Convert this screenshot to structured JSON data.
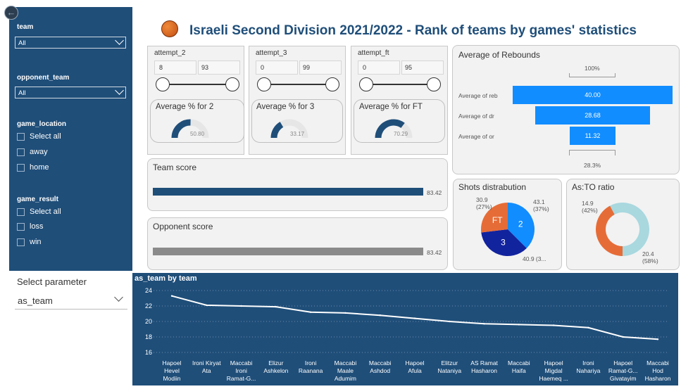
{
  "page": {
    "title": "Israeli Second Division 2021/2022 - Rank of teams by games' statistics"
  },
  "filters": {
    "team": {
      "label": "team",
      "value": "All"
    },
    "opponent_team": {
      "label": "opponent_team",
      "value": "All"
    },
    "game_location": {
      "label": "game_location",
      "options": [
        "Select all",
        "away",
        "home"
      ]
    },
    "game_result": {
      "label": "game_result",
      "options": [
        "Select all",
        "loss",
        "win"
      ]
    }
  },
  "select_parameter": {
    "label": "Select parameter",
    "value": "as_team"
  },
  "sliders": [
    {
      "title": "attempt_2",
      "min": "8",
      "max": "93"
    },
    {
      "title": "attempt_3",
      "min": "0",
      "max": "99"
    },
    {
      "title": "attempt_ft",
      "min": "0",
      "max": "95"
    }
  ],
  "gauges": [
    {
      "title": "Average % for 2",
      "value": "50.80",
      "fraction": 0.508
    },
    {
      "title": "Average % for 3",
      "value": "33.17",
      "fraction": 0.3317
    },
    {
      "title": "Average % for FT",
      "value": "70.29",
      "fraction": 0.7029
    }
  ],
  "team_score": {
    "title": "Team score",
    "value": "83.42"
  },
  "opponent_score": {
    "title": "Opponent score",
    "value": "83.42"
  },
  "rebounds": {
    "title": "Average of Rebounds",
    "top_pct": "100%",
    "bottom_pct": "28.3%",
    "rows": [
      {
        "label": "Average of reb",
        "value": "40.00",
        "num": 40.0
      },
      {
        "label": "Average of dr",
        "value": "28.68",
        "num": 28.68
      },
      {
        "label": "Average of or",
        "value": "11.32",
        "num": 11.32
      }
    ]
  },
  "shots": {
    "title": "Shots distrabution",
    "slices": [
      {
        "name": "2",
        "value": 43.1,
        "label": "43.1",
        "pct": "(37%)",
        "color": "#118dff"
      },
      {
        "name": "3",
        "value": 40.9,
        "label": "40.9 (3...",
        "pct": "",
        "color": "#12239e"
      },
      {
        "name": "FT",
        "value": 30.9,
        "label": "30.9",
        "pct": "(27%)",
        "color": "#e66c37"
      }
    ]
  },
  "as_to": {
    "title": "As:TO ratio",
    "slices": [
      {
        "value": 14.9,
        "label": "14.9",
        "pct": "(42%)",
        "color": "#e66c37"
      },
      {
        "value": 20.4,
        "label": "20.4",
        "pct": "(58%)",
        "color": "#a9d8df"
      }
    ]
  },
  "chart_data": {
    "type": "line",
    "title": "as_team by team",
    "categories": [
      "Hapoel Hevel Modiin",
      "Ironi Kiryat Ata",
      "Maccabi Ironi Ramat-G...",
      "Elizur Ashkelon",
      "Ironi Raanana",
      "Maccabi Maale Adumim",
      "Maccabi Ashdod",
      "Hapoel Afula",
      "Elitzur Nataniya",
      "AS Ramat Hasharon",
      "Maccabi Haifa",
      "Hapoel Migdal Haemeq ...",
      "Ironi Nahariya",
      "Hapoel Ramat-G... Givatayim",
      "Maccabi Hod Hasharon"
    ],
    "label_lines": [
      [
        "Hapoel",
        "Hevel",
        "Modiin"
      ],
      [
        "Ironi Kiryat",
        "Ata"
      ],
      [
        "Maccabi",
        "Ironi",
        "Ramat-G..."
      ],
      [
        "Elizur",
        "Ashkelon"
      ],
      [
        "Ironi",
        "Raanana"
      ],
      [
        "Maccabi",
        "Maale",
        "Adumim"
      ],
      [
        "Maccabi",
        "Ashdod"
      ],
      [
        "Hapoel",
        "Afula"
      ],
      [
        "Elitzur",
        "Nataniya"
      ],
      [
        "AS Ramat",
        "Hasharon"
      ],
      [
        "Maccabi",
        "Haifa"
      ],
      [
        "Hapoel",
        "Migdal",
        "Haemeq ..."
      ],
      [
        "Ironi",
        "Nahariya"
      ],
      [
        "Hapoel",
        "Ramat-G...",
        "Givatayim"
      ],
      [
        "Maccabi",
        "Hod",
        "Hasharon"
      ]
    ],
    "values": [
      23.3,
      22.1,
      22.0,
      21.9,
      21.2,
      21.1,
      20.8,
      20.4,
      20.0,
      19.7,
      19.6,
      19.5,
      19.2,
      18.0,
      17.7
    ],
    "ylim": [
      15,
      25
    ],
    "yticks": [
      "24",
      "22",
      "20",
      "18",
      "16"
    ],
    "color": "#ffffff"
  }
}
